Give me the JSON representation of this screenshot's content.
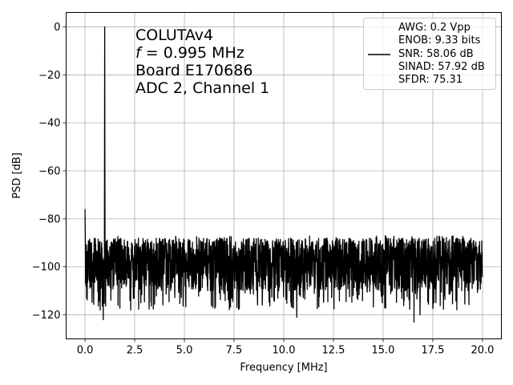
{
  "chart_data": {
    "type": "line",
    "xlabel": "Frequency [MHz]",
    "ylabel": "PSD [dB]",
    "xlim": [
      -0.95,
      20.95
    ],
    "ylim": [
      -130,
      6
    ],
    "xticks": [
      0.0,
      2.5,
      5.0,
      7.5,
      10.0,
      12.5,
      15.0,
      17.5,
      20.0
    ],
    "xtick_labels": [
      "0.0",
      "2.5",
      "5.0",
      "7.5",
      "10.0",
      "12.5",
      "15.0",
      "17.5",
      "20.0"
    ],
    "yticks": [
      0,
      -20,
      -40,
      -60,
      -80,
      -100,
      -120
    ],
    "ytick_labels": [
      "0",
      "−20",
      "−40",
      "−60",
      "−80",
      "−100",
      "−120"
    ],
    "grid": true,
    "annotation": {
      "line1": "COLUTAv4",
      "line2_symbol": "f",
      "line2_rest": " = 0.995 MHz",
      "line3": "Board E170686",
      "line4": "ADC 2, Channel 1"
    },
    "legend": {
      "placement": "upper-right",
      "lines": [
        "AWG: 0.2 Vpp",
        "ENOB: 9.33 bits",
        "SNR: 58.06 dB",
        "SINAD: 57.92 dB",
        "SFDR: 75.31"
      ]
    },
    "series": [
      {
        "color": "#000000",
        "frequency_range_mhz": [
          0.0,
          20.0
        ],
        "noise_floor_db": {
          "mean": -98,
          "upper_typical": -88,
          "lower_min": -123
        },
        "dc_bin_db": -76,
        "peaks": [
          {
            "x": 0.995,
            "y": 0.0
          }
        ],
        "low_dips": [
          {
            "x": 0.08,
            "y": -113
          },
          {
            "x": 0.76,
            "y": -118
          },
          {
            "x": 0.92,
            "y": -122
          },
          {
            "x": 2.26,
            "y": -114
          },
          {
            "x": 2.3,
            "y": -118
          },
          {
            "x": 10.65,
            "y": -121
          },
          {
            "x": 16.55,
            "y": -123
          },
          {
            "x": 16.85,
            "y": -120
          },
          {
            "x": 17.55,
            "y": -115
          }
        ]
      }
    ]
  }
}
